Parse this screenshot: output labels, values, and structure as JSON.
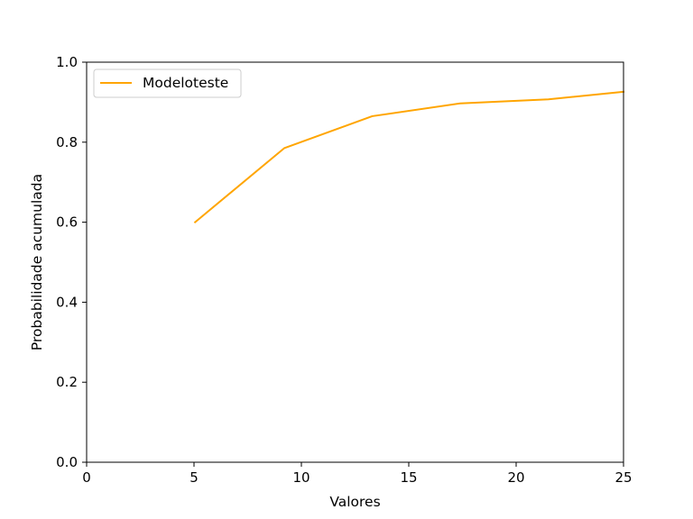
{
  "chart_data": {
    "type": "line",
    "title": "",
    "xlabel": "Valores",
    "ylabel": "Probabilidade acumulada",
    "xlim": [
      0,
      25
    ],
    "ylim": [
      0,
      1.0
    ],
    "x_ticks": [
      "0",
      "5",
      "10",
      "15",
      "20",
      "25"
    ],
    "y_ticks": [
      "0.0",
      "0.2",
      "0.4",
      "0.6",
      "0.8",
      "1.0"
    ],
    "grid": false,
    "legend_position": "upper-left",
    "series": [
      {
        "name": "Modeloteste",
        "color": "#ffa500",
        "x": [
          5.05,
          9.2,
          13.3,
          17.4,
          21.5,
          25.0
        ],
        "y": [
          0.6,
          0.785,
          0.865,
          0.897,
          0.907,
          0.926
        ]
      }
    ]
  }
}
